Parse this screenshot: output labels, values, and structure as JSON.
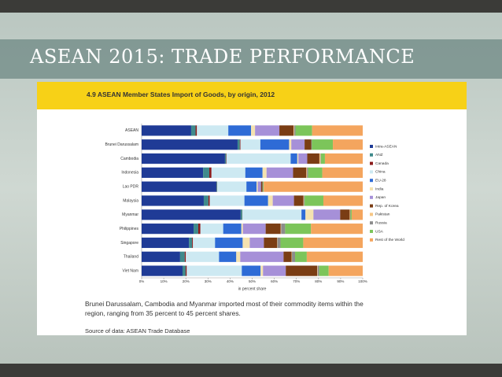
{
  "slide_title": "ASEAN 2015: TRADE PERFORMANCE",
  "caption": "Brunei Darussalam, Cambodia and Myanmar imported most of their commodity items within the region, ranging from 35 percent to 45 percent shares.",
  "source": "Source of data:  ASEAN Trade Database",
  "chart_data": {
    "type": "stacked_barh",
    "title": "4.9 ASEAN Member States Import of Goods, by origin, 2012",
    "xlabel": "in percent share",
    "categories": [
      "ASEAN",
      "Brunei Darussalam",
      "Cambodia",
      "Indonesia",
      "Lao PDR",
      "Malaysia",
      "Myanmar",
      "Philippines",
      "Singapore",
      "Thailand",
      "Viet Nam"
    ],
    "xlim": [
      0,
      100
    ],
    "xticks": [
      {
        "value": 0,
        "label": "0%"
      },
      {
        "value": 10,
        "label": "10%"
      },
      {
        "value": 20,
        "label": "20%"
      },
      {
        "value": 30,
        "label": "30%"
      },
      {
        "value": 40,
        "label": "40%"
      },
      {
        "value": 50,
        "label": "50%"
      },
      {
        "value": 60,
        "label": "60%"
      },
      {
        "value": 70,
        "label": "70%"
      },
      {
        "value": 80,
        "label": "80%"
      },
      {
        "value": 90,
        "label": "90%"
      },
      {
        "value": 100,
        "label": "100%"
      }
    ],
    "legend": "right",
    "series": [
      {
        "name": "Intra-ASEAN",
        "color": "#1f3b96",
        "values": [
          22.4,
          43.4,
          37.7,
          27.8,
          33.8,
          28.1,
          44.8,
          23.5,
          21.4,
          17.4,
          18.5
        ]
      },
      {
        "name": "ANZ",
        "color": "#3f8a8c",
        "values": [
          2,
          1,
          0.5,
          2.8,
          0.3,
          2.1,
          0.7,
          2.1,
          1.4,
          2.1,
          1.4
        ]
      },
      {
        "name": "Canada",
        "color": "#8b1c1c",
        "values": [
          0.6,
          0.3,
          0.2,
          1,
          0.1,
          0.6,
          0.1,
          1,
          0.4,
          0.5,
          0.5
        ]
      },
      {
        "name": "China",
        "color": "#cde9f2",
        "values": [
          14.2,
          9,
          29,
          15.3,
          13.2,
          15.7,
          26.7,
          10.3,
          10,
          15,
          24.9
        ]
      },
      {
        "name": "EU-28",
        "color": "#2e6bd6",
        "values": [
          10.3,
          13,
          3,
          7.8,
          4.6,
          10.7,
          1.8,
          8.2,
          12.5,
          7.8,
          8.5
        ]
      },
      {
        "name": "India",
        "color": "#f4e2b0",
        "values": [
          1.8,
          1,
          0.5,
          1.8,
          0.5,
          2.1,
          3.6,
          0.7,
          3.2,
          1.8,
          1.1
        ]
      },
      {
        "name": "Japan",
        "color": "#a690d8",
        "values": [
          11,
          6,
          4,
          12,
          1.5,
          9.6,
          12.1,
          10.3,
          6.4,
          19.6,
          10.3
        ]
      },
      {
        "name": "Rep. of Korea",
        "color": "#7a3d14",
        "values": [
          6.4,
          3,
          5.5,
          6,
          0.7,
          4.3,
          4.3,
          6.8,
          6,
          3.6,
          14.2
        ]
      },
      {
        "name": "Pakistan",
        "color": "#f6c684",
        "values": [
          0.3,
          0,
          0.5,
          0.3,
          0,
          0.2,
          0.2,
          0.2,
          0.1,
          0.2,
          0.2
        ]
      },
      {
        "name": "Russia",
        "color": "#8c8c8c",
        "values": [
          0.6,
          0.3,
          0.2,
          0.5,
          0.2,
          0.3,
          0.2,
          1.8,
          1.4,
          1.4,
          0.7
        ]
      },
      {
        "name": "USA",
        "color": "#7cc55a",
        "values": [
          7.5,
          9.5,
          1.8,
          6.4,
          0.3,
          8.5,
          0.5,
          11.7,
          10.3,
          5.3,
          4.3
        ]
      },
      {
        "name": "Rest of the World",
        "color": "#f4a55e",
        "values": [
          22.9,
          13.5,
          17.1,
          18.3,
          44.8,
          17.8,
          5,
          23.4,
          26.9,
          25.3,
          15.4
        ]
      }
    ]
  }
}
